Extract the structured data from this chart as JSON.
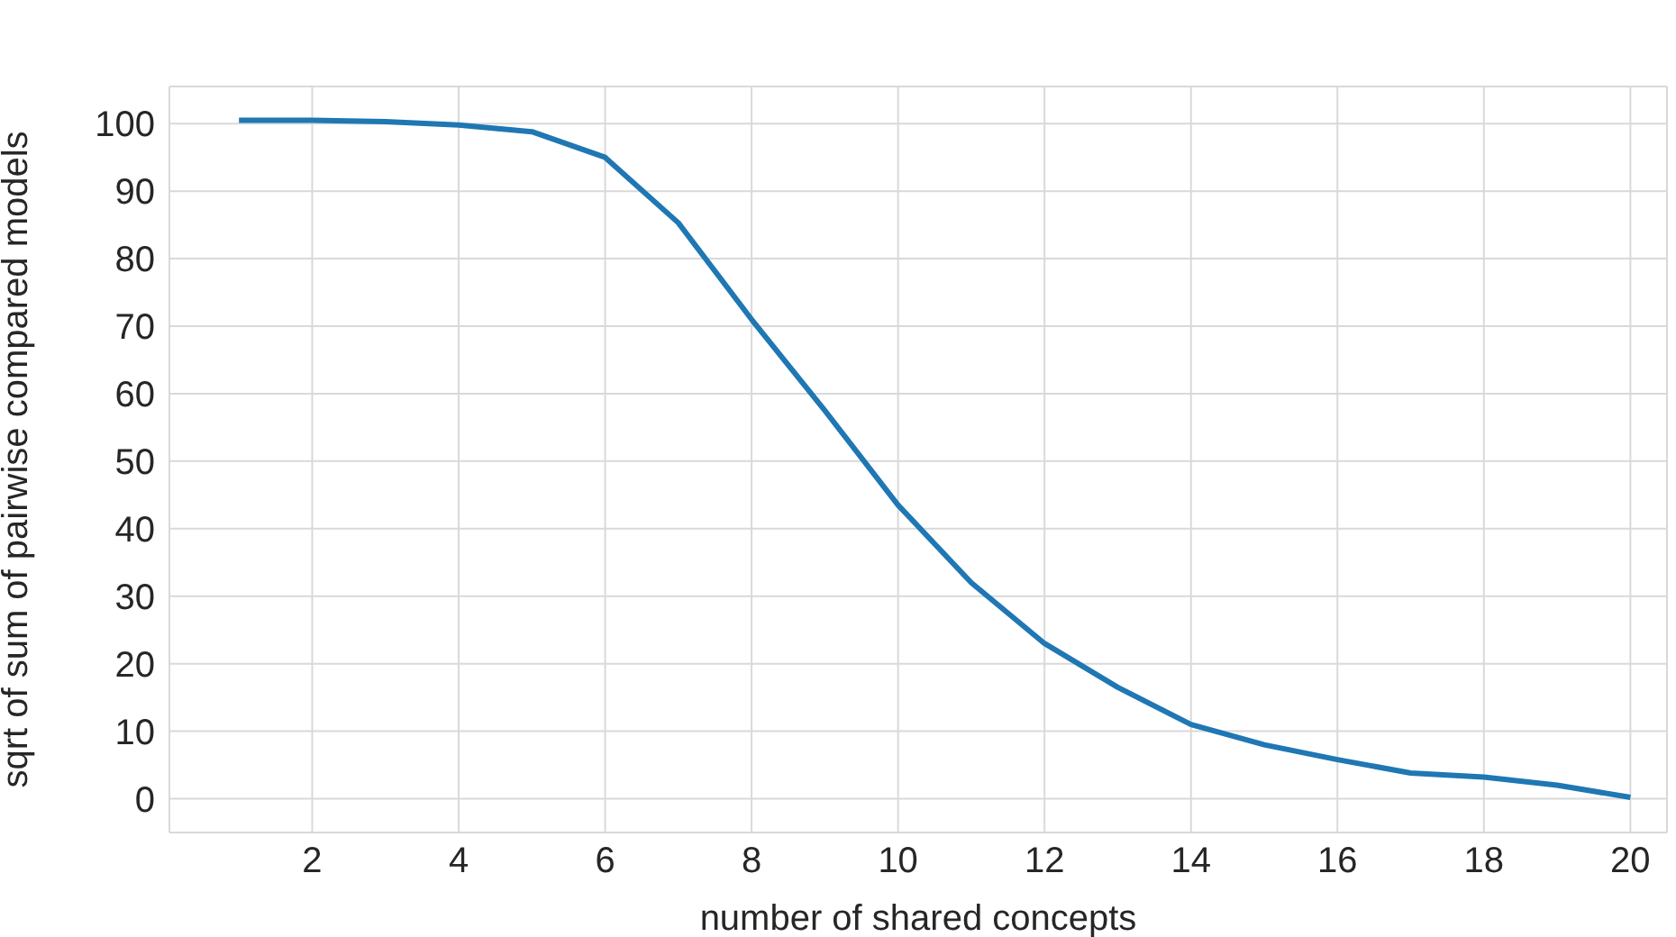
{
  "chart_data": {
    "type": "line",
    "xlabel": "number of shared concepts",
    "ylabel": "sqrt of sum of pairwise compared models",
    "x": [
      1,
      2,
      3,
      4,
      5,
      6,
      7,
      8,
      9,
      10,
      11,
      12,
      13,
      14,
      15,
      16,
      17,
      18,
      19,
      20
    ],
    "series": [
      {
        "color": "#1f77b4",
        "values": [
          100.5,
          100.5,
          100.3,
          99.8,
          98.8,
          95,
          85.3,
          71,
          57.5,
          43.5,
          32,
          23,
          16.5,
          11,
          8,
          5.8,
          3.8,
          3.2,
          2,
          0.2
        ]
      }
    ],
    "xlim": [
      0.05,
      20.5
    ],
    "ylim": [
      -5,
      105.5
    ],
    "xticks": [
      2,
      4,
      6,
      8,
      10,
      12,
      14,
      16,
      18,
      20
    ],
    "yticks": [
      0,
      10,
      20,
      30,
      40,
      50,
      60,
      70,
      80,
      90,
      100
    ],
    "grid": true,
    "marker": "none",
    "line_style": "solid"
  }
}
